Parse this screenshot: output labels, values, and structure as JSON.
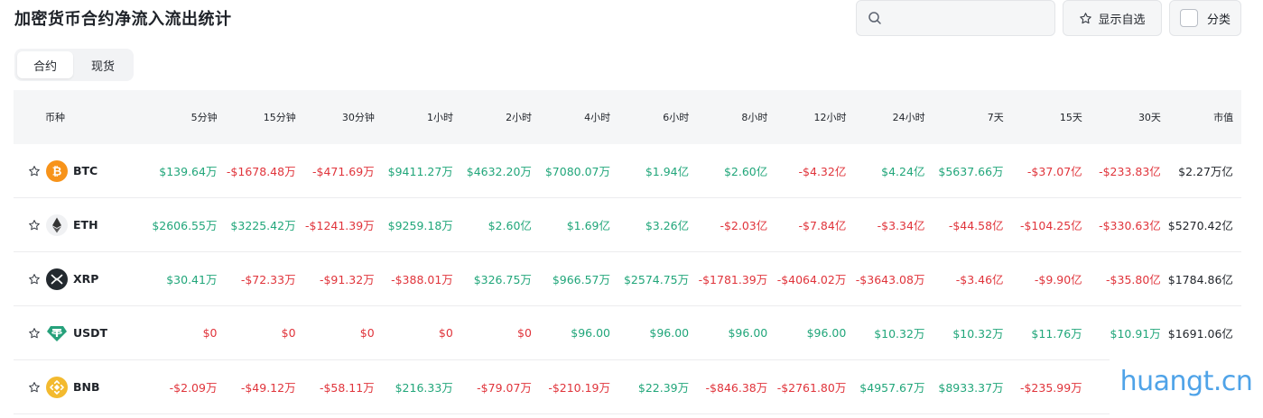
{
  "page_title": "加密货币合约净流入流出统计",
  "search": {
    "placeholder": ""
  },
  "toolbar": {
    "favorites_label": "显示自选",
    "category_label": "分类"
  },
  "tabs": [
    {
      "label": "合约",
      "active": true
    },
    {
      "label": "现货",
      "active": false
    }
  ],
  "table": {
    "headers": [
      "币种",
      "5分钟",
      "15分钟",
      "30分钟",
      "1小时",
      "2小时",
      "4小时",
      "6小时",
      "8小时",
      "12小时",
      "24小时",
      "7天",
      "15天",
      "30天",
      "市值"
    ],
    "rows": [
      {
        "symbol": "BTC",
        "icon": "bitcoin-icon",
        "values": [
          "$139.64万",
          "-$1678.48万",
          "-$471.69万",
          "$9411.27万",
          "$4632.20万",
          "$7080.07万",
          "$1.94亿",
          "$2.60亿",
          "-$4.32亿",
          "$4.24亿",
          "$5637.66万",
          "-$37.07亿",
          "-$233.83亿"
        ],
        "market_cap": "$2.27万亿"
      },
      {
        "symbol": "ETH",
        "icon": "ethereum-icon",
        "values": [
          "$2606.55万",
          "$3225.42万",
          "-$1241.39万",
          "$9259.18万",
          "$2.60亿",
          "$1.69亿",
          "$3.26亿",
          "-$2.03亿",
          "-$7.84亿",
          "-$3.34亿",
          "-$44.58亿",
          "-$104.25亿",
          "-$330.63亿"
        ],
        "market_cap": "$5270.42亿"
      },
      {
        "symbol": "XRP",
        "icon": "xrp-icon",
        "values": [
          "$30.41万",
          "-$72.33万",
          "-$91.32万",
          "-$388.01万",
          "$326.75万",
          "$966.57万",
          "$2574.75万",
          "-$1781.39万",
          "-$4064.02万",
          "-$3643.08万",
          "-$3.46亿",
          "-$9.90亿",
          "-$35.80亿"
        ],
        "market_cap": "$1784.86亿"
      },
      {
        "symbol": "USDT",
        "icon": "tether-icon",
        "values": [
          "$0",
          "$0",
          "$0",
          "$0",
          "$0",
          "$96.00",
          "$96.00",
          "$96.00",
          "$96.00",
          "$10.32万",
          "$10.32万",
          "$11.76万",
          "$10.91万"
        ],
        "market_cap": "$1691.06亿"
      },
      {
        "symbol": "BNB",
        "icon": "bnb-icon",
        "values": [
          "-$2.09万",
          "-$49.12万",
          "-$58.11万",
          "$216.33万",
          "-$79.07万",
          "-$210.19万",
          "$22.39万",
          "-$846.38万",
          "-$2761.80万",
          "$4957.67万",
          "$8933.37万",
          "-$235.99万",
          ""
        ],
        "market_cap": ""
      }
    ]
  },
  "watermark": "huangt.cn",
  "colors": {
    "positive": "#21a67a",
    "negative": "#e0343b",
    "header_bg": "#f5f6f7"
  }
}
